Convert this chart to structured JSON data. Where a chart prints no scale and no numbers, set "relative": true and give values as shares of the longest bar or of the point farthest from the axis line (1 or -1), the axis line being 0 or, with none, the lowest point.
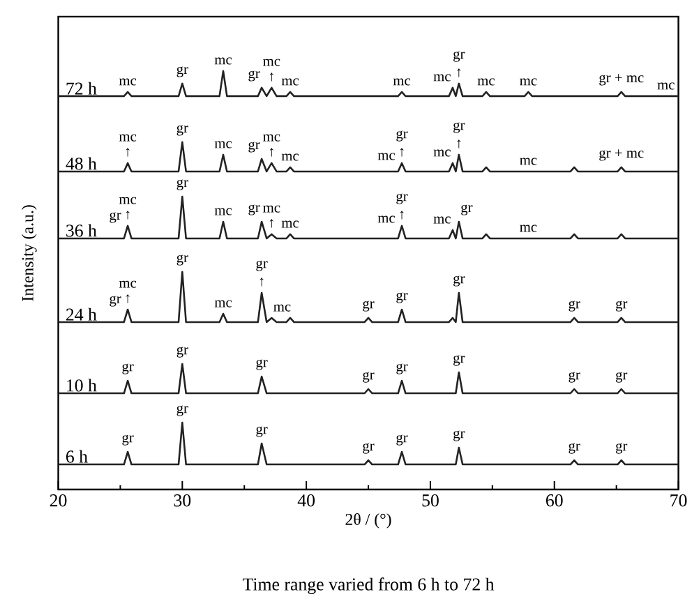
{
  "chart_data": {
    "type": "line",
    "relative": true,
    "xlabel": "2θ / (°)",
    "ylabel": "Intensity (a.u.)",
    "xlim": [
      20,
      70
    ],
    "xticks": [
      20,
      {
        "value": 25,
        "label": null
      },
      30,
      {
        "value": 35,
        "label": null
      },
      40,
      {
        "value": 45,
        "label": null
      },
      50,
      {
        "value": 55,
        "label": null
      },
      60,
      {
        "value": 65,
        "label": null
      },
      70
    ],
    "x": [
      20,
      25.3,
      25.6,
      25.9,
      29.7,
      30,
      30.3,
      33.0,
      33.3,
      33.6,
      36.1,
      36.4,
      36.8,
      37.2,
      37.6,
      38.4,
      38.7,
      39.0,
      44.7,
      45,
      45.3,
      47.4,
      47.7,
      48.0,
      51.5,
      51.8,
      52.05,
      52.3,
      52.6,
      54.2,
      54.5,
      54.8,
      57.6,
      57.9,
      58.2,
      61.3,
      61.6,
      61.9,
      65.1,
      65.4,
      65.7,
      68.7,
      69,
      69.3,
      70
    ],
    "series": [
      {
        "name": "6 h",
        "color": "#222222",
        "values": [
          0.06,
          0.06,
          0.09,
          0.06,
          0.06,
          0.16,
          0.06,
          0.06,
          0.06,
          0.06,
          0.06,
          0.11,
          0.06,
          0.06,
          0.06,
          0.06,
          0.06,
          0.06,
          0.06,
          0.07,
          0.06,
          0.06,
          0.09,
          0.06,
          0.06,
          0.06,
          0.06,
          0.1,
          0.06,
          0.06,
          0.06,
          0.06,
          0.06,
          0.06,
          0.06,
          0.06,
          0.07,
          0.06,
          0.06,
          0.07,
          0.06,
          0.06,
          0.06,
          0.06,
          0.06
        ]
      },
      {
        "name": "10 h",
        "color": "#222222",
        "values": [
          0.23,
          0.23,
          0.26,
          0.23,
          0.23,
          0.3,
          0.23,
          0.23,
          0.23,
          0.23,
          0.23,
          0.27,
          0.23,
          0.23,
          0.23,
          0.23,
          0.23,
          0.23,
          0.23,
          0.24,
          0.23,
          0.23,
          0.26,
          0.23,
          0.23,
          0.23,
          0.23,
          0.28,
          0.23,
          0.23,
          0.23,
          0.23,
          0.23,
          0.23,
          0.23,
          0.23,
          0.24,
          0.23,
          0.23,
          0.24,
          0.23,
          0.23,
          0.23,
          0.23,
          0.23
        ]
      },
      {
        "name": "24 h",
        "color": "#222222",
        "values": [
          0.4,
          0.4,
          0.43,
          0.4,
          0.4,
          0.52,
          0.4,
          0.4,
          0.42,
          0.4,
          0.4,
          0.47,
          0.4,
          0.41,
          0.4,
          0.4,
          0.41,
          0.4,
          0.4,
          0.41,
          0.4,
          0.4,
          0.43,
          0.4,
          0.4,
          0.41,
          0.4,
          0.47,
          0.4,
          0.4,
          0.4,
          0.4,
          0.4,
          0.4,
          0.4,
          0.4,
          0.41,
          0.4,
          0.4,
          0.41,
          0.4,
          0.4,
          0.4,
          0.4,
          0.4
        ]
      },
      {
        "name": "36 h",
        "color": "#222222",
        "values": [
          0.6,
          0.6,
          0.63,
          0.6,
          0.6,
          0.7,
          0.6,
          0.6,
          0.64,
          0.6,
          0.6,
          0.64,
          0.6,
          0.61,
          0.6,
          0.6,
          0.61,
          0.6,
          0.6,
          0.6,
          0.6,
          0.6,
          0.63,
          0.6,
          0.6,
          0.62,
          0.6,
          0.64,
          0.6,
          0.6,
          0.61,
          0.6,
          0.6,
          0.6,
          0.6,
          0.6,
          0.61,
          0.6,
          0.6,
          0.61,
          0.6,
          0.6,
          0.6,
          0.6,
          0.6
        ]
      },
      {
        "name": "48 h",
        "color": "#222222",
        "values": [
          0.76,
          0.76,
          0.78,
          0.76,
          0.76,
          0.83,
          0.76,
          0.76,
          0.8,
          0.76,
          0.76,
          0.79,
          0.76,
          0.78,
          0.76,
          0.76,
          0.77,
          0.76,
          0.76,
          0.76,
          0.76,
          0.76,
          0.78,
          0.76,
          0.76,
          0.78,
          0.76,
          0.8,
          0.76,
          0.76,
          0.77,
          0.76,
          0.76,
          0.76,
          0.76,
          0.76,
          0.77,
          0.76,
          0.76,
          0.77,
          0.76,
          0.76,
          0.76,
          0.76,
          0.76
        ]
      },
      {
        "name": "72 h",
        "color": "#222222",
        "values": [
          0.94,
          0.94,
          0.95,
          0.94,
          0.94,
          0.97,
          0.94,
          0.94,
          1.0,
          0.94,
          0.94,
          0.96,
          0.94,
          0.96,
          0.94,
          0.94,
          0.95,
          0.94,
          0.94,
          0.94,
          0.94,
          0.94,
          0.95,
          0.94,
          0.94,
          0.96,
          0.94,
          0.97,
          0.94,
          0.94,
          0.95,
          0.94,
          0.94,
          0.95,
          0.94,
          0.94,
          0.94,
          0.94,
          0.94,
          0.95,
          0.94,
          0.94,
          0.94,
          0.94,
          0.94
        ]
      }
    ],
    "annotations": [
      {
        "text": "gr",
        "x": 25.6,
        "y": 0.09
      },
      {
        "text": "gr",
        "x": 30,
        "y": 0.16
      },
      {
        "text": "gr",
        "x": 36.4,
        "y": 0.11
      },
      {
        "text": "gr",
        "x": 45,
        "y": 0.07
      },
      {
        "text": "gr",
        "x": 47.7,
        "y": 0.09
      },
      {
        "text": "gr",
        "x": 52.3,
        "y": 0.1
      },
      {
        "text": "gr",
        "x": 61.6,
        "y": 0.07
      },
      {
        "text": "gr",
        "x": 65.4,
        "y": 0.07
      },
      {
        "text": "gr",
        "x": 25.6,
        "y": 0.26
      },
      {
        "text": "gr",
        "x": 30,
        "y": 0.3
      },
      {
        "text": "gr",
        "x": 36.4,
        "y": 0.27
      },
      {
        "text": "gr",
        "x": 45,
        "y": 0.24
      },
      {
        "text": "gr",
        "x": 47.7,
        "y": 0.26
      },
      {
        "text": "gr",
        "x": 52.3,
        "y": 0.28
      },
      {
        "text": "gr",
        "x": 61.6,
        "y": 0.24
      },
      {
        "text": "gr",
        "x": 65.4,
        "y": 0.24
      },
      {
        "text": "gr",
        "x": 25.6,
        "y": 0.43
      },
      {
        "text": "↑",
        "x": 25.6,
        "y": 0.43
      },
      {
        "text": "mc",
        "x": 25.6,
        "y": 0.43
      },
      {
        "text": "gr",
        "x": 30,
        "y": 0.52
      },
      {
        "text": "mc",
        "x": 33.3,
        "y": 0.42
      },
      {
        "text": "↑",
        "x": 36.4,
        "y": 0.47
      },
      {
        "text": "gr",
        "x": 36.4,
        "y": 0.47
      },
      {
        "text": "mc",
        "x": 37.2,
        "y": 0.41
      },
      {
        "text": "gr",
        "x": 45,
        "y": 0.41
      },
      {
        "text": "gr",
        "x": 47.7,
        "y": 0.43
      },
      {
        "text": "gr",
        "x": 52.3,
        "y": 0.47
      },
      {
        "text": "gr",
        "x": 61.6,
        "y": 0.41
      },
      {
        "text": "gr",
        "x": 65.4,
        "y": 0.41
      },
      {
        "text": "gr",
        "x": 25.6,
        "y": 0.63
      },
      {
        "text": "↑",
        "x": 25.6,
        "y": 0.63
      },
      {
        "text": "mc",
        "x": 25.6,
        "y": 0.63
      },
      {
        "text": "gr",
        "x": 30,
        "y": 0.7
      },
      {
        "text": "mc",
        "x": 33.3,
        "y": 0.64
      },
      {
        "text": "gr",
        "x": 36.4,
        "y": 0.64
      },
      {
        "text": "↑",
        "x": 37.2,
        "y": 0.61
      },
      {
        "text": "mc",
        "x": 37.2,
        "y": 0.61
      },
      {
        "text": "mc",
        "x": 38.7,
        "y": 0.61
      },
      {
        "text": "mc",
        "x": 47.7,
        "y": 0.63
      },
      {
        "text": "↑",
        "x": 47.7,
        "y": 0.63
      },
      {
        "text": "gr",
        "x": 47.7,
        "y": 0.63
      },
      {
        "text": "mc",
        "x": 51.8,
        "y": 0.62
      },
      {
        "text": "gr",
        "x": 52.3,
        "y": 0.64
      },
      {
        "text": "mc",
        "x": 57.9,
        "y": 0.6
      },
      {
        "text": "↑",
        "x": 25.6,
        "y": 0.78
      },
      {
        "text": "mc",
        "x": 25.6,
        "y": 0.78
      },
      {
        "text": "gr",
        "x": 30,
        "y": 0.83
      },
      {
        "text": "mc",
        "x": 33.3,
        "y": 0.8
      },
      {
        "text": "gr",
        "x": 36.4,
        "y": 0.79
      },
      {
        "text": "↑",
        "x": 37.2,
        "y": 0.78
      },
      {
        "text": "mc",
        "x": 37.2,
        "y": 0.78
      },
      {
        "text": "mc",
        "x": 38.7,
        "y": 0.77
      },
      {
        "text": "mc",
        "x": 47.7,
        "y": 0.78
      },
      {
        "text": "↑",
        "x": 47.7,
        "y": 0.78
      },
      {
        "text": "gr",
        "x": 47.7,
        "y": 0.78
      },
      {
        "text": "mc",
        "x": 51.8,
        "y": 0.78
      },
      {
        "text": "↑",
        "x": 52.3,
        "y": 0.8
      },
      {
        "text": "gr",
        "x": 52.3,
        "y": 0.8
      },
      {
        "text": "mc",
        "x": 57.9,
        "y": 0.76
      },
      {
        "text": "gr + mc",
        "x": 65.4,
        "y": 0.77
      },
      {
        "text": "mc",
        "x": 25.6,
        "y": 0.95
      },
      {
        "text": "gr",
        "x": 30,
        "y": 0.97
      },
      {
        "text": "mc",
        "x": 33.3,
        "y": 1.0
      },
      {
        "text": "gr",
        "x": 36.4,
        "y": 0.96
      },
      {
        "text": "↑",
        "x": 37.2,
        "y": 0.96
      },
      {
        "text": "mc",
        "x": 37.2,
        "y": 0.96
      },
      {
        "text": "mc",
        "x": 38.7,
        "y": 0.95
      },
      {
        "text": "mc",
        "x": 47.7,
        "y": 0.95
      },
      {
        "text": "mc",
        "x": 51.8,
        "y": 0.96
      },
      {
        "text": "↑",
        "x": 52.3,
        "y": 0.97
      },
      {
        "text": "gr",
        "x": 52.3,
        "y": 0.97
      },
      {
        "text": "mc",
        "x": 54.5,
        "y": 0.95
      },
      {
        "text": "mc",
        "x": 57.9,
        "y": 0.95
      },
      {
        "text": "gr + mc",
        "x": 65.4,
        "y": 0.95
      },
      {
        "text": "mc",
        "x": 69,
        "y": 0.94
      },
      "Time range varied from 6 h to 72 h"
    ]
  }
}
